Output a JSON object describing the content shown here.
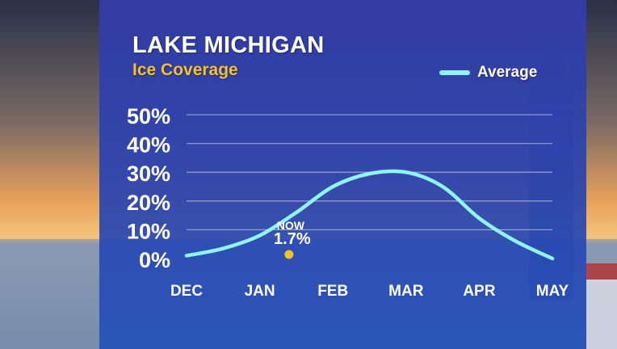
{
  "title": "LAKE MICHIGAN",
  "subtitle": "Ice Coverage",
  "legend": {
    "label": "Average"
  },
  "colors": {
    "line": "#8ff4f4",
    "now_marker": "#f2c12e",
    "subtitle": "#f2c12e"
  },
  "chart_data": {
    "type": "line",
    "categories": [
      "DEC",
      "JAN",
      "FEB",
      "MAR",
      "APR",
      "MAY"
    ],
    "yticks": [
      "50%",
      "40%",
      "30%",
      "20%",
      "10%",
      "0%"
    ],
    "ylim": [
      0,
      50
    ],
    "grid": true,
    "legend_position": "top-right",
    "series": [
      {
        "name": "Average",
        "x": [
          0,
          0.5,
          1,
          1.5,
          2,
          2.5,
          3,
          3.5,
          4,
          4.5,
          5
        ],
        "values": [
          1,
          3.5,
          8,
          16,
          25,
          29.5,
          30,
          25,
          14,
          6,
          0
        ]
      }
    ],
    "annotation": {
      "label": "NOW",
      "value_label": "1.7%",
      "x": 1.4,
      "y": 1.7
    }
  }
}
